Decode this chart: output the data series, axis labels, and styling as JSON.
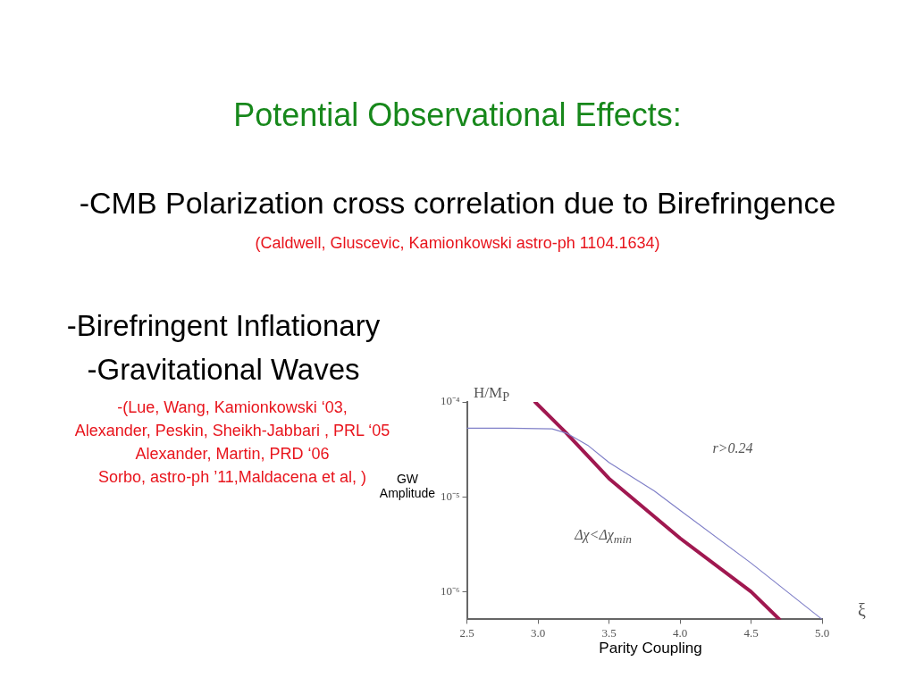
{
  "chart_data": {
    "type": "line",
    "title": "Potential Observational Effects:",
    "xlabel": "ξ",
    "ylabel": "H/M$_{P}$",
    "xlim": [
      2.5,
      5.0
    ],
    "xticks": [
      2.5,
      {
        "value": 3,
        "label": "3.0"
      },
      3.5,
      {
        "value": 4,
        "label": "4.0"
      },
      4.5,
      {
        "value": 5,
        "label": "5.0"
      }
    ],
    "ylim": [
      5.1e-07,
      0.0001
    ],
    "yticks": [
      {
        "value": 1e-06,
        "label": "10⁻⁶"
      },
      {
        "value": 1e-05,
        "label": "10⁻⁵"
      },
      {
        "value": 0.0001,
        "label": "10⁻⁴"
      }
    ],
    "log": "y",
    "grid": false,
    "legend": false,
    "marker": "none",
    "line_style": "solid",
    "series": [
      {
        "color": "#8080c8",
        "x": [
          2.5,
          2.8,
          3.1,
          3.2,
          3.35,
          3.5,
          3.82,
          4.0,
          4.5,
          5.0
        ],
        "values": [
          5.3e-05,
          5.3e-05,
          5.2e-05,
          4.7e-05,
          3.5e-05,
          2.3e-05,
          1.15e-05,
          7.2e-06,
          2e-06,
          5.1e-07
        ]
      },
      {
        "color": "#a01850",
        "x": [
          2.98,
          3.2,
          3.5,
          4.0,
          4.5,
          4.7
        ],
        "values": [
          0.0001,
          4.7e-05,
          1.56e-05,
          3.66e-06,
          1e-06,
          5.1e-07
        ]
      }
    ],
    "annotations": [
      "-CMB Polarization cross correlation due to Birefringence",
      "(Caldwell, Gluscevic, Kamionkowski astro-ph 1104.1634)",
      "-Birefringent Inflationary",
      "-Gravitational Waves",
      "-(Lue, Wang, Kamionkowski ‘03,",
      "Alexander, Peskin, Sheikh-Jabbari , PRL ‘05",
      "Alexander, Martin, PRD ‘06",
      "Sorbo, astro-ph ’11,Maldacena et al, )",
      "GW Amplitude",
      "Parity Coupling",
      "r>0.24",
      "Δχ<Δχ$_{min}$"
    ]
  }
}
